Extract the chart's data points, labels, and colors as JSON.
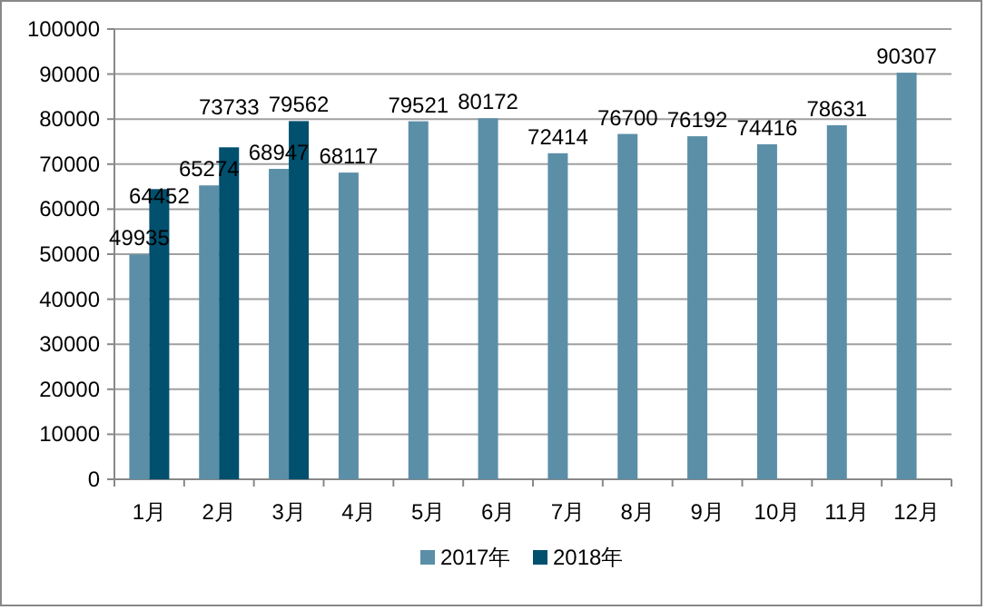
{
  "chart_data": {
    "type": "bar",
    "categories": [
      "1月",
      "2月",
      "3月",
      "4月",
      "5月",
      "6月",
      "7月",
      "8月",
      "9月",
      "10月",
      "11月",
      "12月"
    ],
    "series": [
      {
        "name": "2017年",
        "color": "#5b8fa8",
        "values": [
          49935,
          65274,
          68947,
          68117,
          79521,
          80172,
          72414,
          76700,
          76192,
          74416,
          78631,
          90307
        ]
      },
      {
        "name": "2018年",
        "color": "#00506e",
        "values": [
          64452,
          73733,
          79562,
          null,
          null,
          null,
          null,
          null,
          null,
          null,
          null,
          null
        ]
      }
    ],
    "ylim": [
      0,
      100000
    ],
    "yticks": [
      0,
      10000,
      20000,
      30000,
      40000,
      50000,
      60000,
      70000,
      80000,
      90000,
      100000
    ],
    "grid": "y",
    "legend": "bottom",
    "data_labels": true
  }
}
